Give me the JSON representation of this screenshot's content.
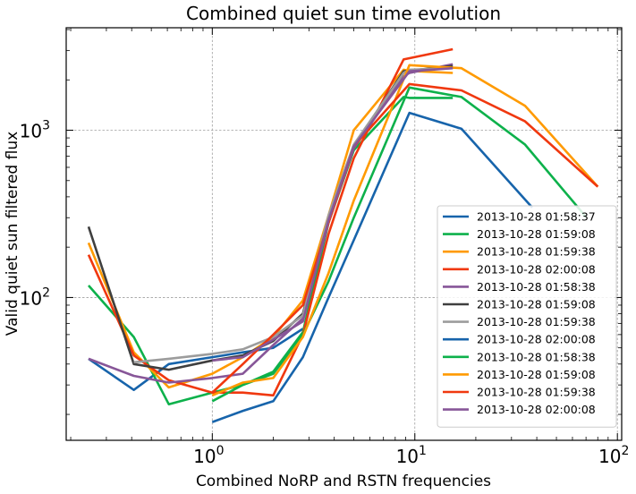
{
  "chart_data": {
    "type": "line",
    "title": "Combined quiet sun time evolution",
    "xlabel": "Combined NoRP and RSTN frequencies",
    "ylabel": "Valid quiet sun filtered flux",
    "xscale": "log",
    "yscale": "log",
    "xlim": [
      0.19,
      105
    ],
    "ylim": [
      14,
      4100
    ],
    "x_ticks": [
      {
        "value": 1,
        "base": "10",
        "exp": "0"
      },
      {
        "value": 10,
        "base": "10",
        "exp": "1"
      },
      {
        "value": 100,
        "base": "10",
        "exp": "2"
      }
    ],
    "y_ticks": [
      {
        "value": 100,
        "base": "10",
        "exp": "2"
      },
      {
        "value": 1000,
        "base": "10",
        "exp": "3"
      }
    ],
    "grid": true,
    "legend_position": "lower-right",
    "series": [
      {
        "name": "2013-10-28 01:58:37",
        "color": "#1764ab",
        "points": [
          [
            0.245,
            43
          ],
          [
            0.41,
            28
          ],
          [
            0.61,
            40
          ],
          [
            1.0,
            44
          ],
          [
            1.415,
            47
          ],
          [
            2.0,
            50
          ],
          [
            2.8,
            65
          ]
        ]
      },
      {
        "name": "2013-10-28 01:59:08",
        "color": "#0db14b",
        "points": [
          [
            0.245,
            118
          ],
          [
            0.41,
            58
          ],
          [
            0.61,
            23
          ],
          [
            1.0,
            27
          ],
          [
            1.415,
            30
          ],
          [
            2.0,
            36
          ],
          [
            2.8,
            62
          ],
          [
            3.75,
            280
          ],
          [
            4.995,
            760
          ],
          [
            8.8,
            1580
          ],
          [
            9.4,
            1560
          ],
          [
            15.4,
            1560
          ]
        ]
      },
      {
        "name": "2013-10-28 01:59:38",
        "color": "#ff9a00",
        "points": [
          [
            0.245,
            212
          ],
          [
            0.41,
            47
          ],
          [
            0.61,
            29
          ],
          [
            1.0,
            35
          ],
          [
            1.415,
            44
          ],
          [
            2.0,
            58
          ],
          [
            2.8,
            96
          ],
          [
            3.75,
            310
          ],
          [
            4.995,
            1000
          ],
          [
            8.8,
            2300
          ],
          [
            9.4,
            2260
          ],
          [
            15.4,
            2200
          ]
        ]
      },
      {
        "name": "2013-10-28 02:00:08",
        "color": "#f0380f",
        "points": [
          [
            0.245,
            180
          ],
          [
            0.41,
            45
          ],
          [
            0.61,
            32
          ],
          [
            1.0,
            27
          ],
          [
            1.415,
            27
          ],
          [
            2.0,
            26
          ],
          [
            2.8,
            60
          ],
          [
            3.75,
            240
          ],
          [
            4.995,
            680
          ],
          [
            8.8,
            2650
          ],
          [
            15.4,
            3050
          ]
        ]
      },
      {
        "name": "2013-10-28 01:58:38",
        "color": "#875698",
        "points": [
          [
            0.245,
            43
          ],
          [
            0.41,
            34
          ],
          [
            0.61,
            31
          ],
          [
            1.0,
            33
          ],
          [
            1.415,
            35
          ],
          [
            2.0,
            52
          ],
          [
            2.8,
            75
          ],
          [
            3.75,
            280
          ],
          [
            4.995,
            780
          ],
          [
            8.8,
            2100
          ],
          [
            9.4,
            2200
          ],
          [
            15.4,
            2480
          ]
        ]
      },
      {
        "name": "2013-10-28 01:59:08",
        "color": "#3f3f3f",
        "points": [
          [
            0.245,
            265
          ],
          [
            0.41,
            40
          ],
          [
            0.61,
            37
          ],
          [
            1.0,
            42
          ],
          [
            1.415,
            45
          ],
          [
            2.0,
            55
          ],
          [
            2.8,
            80
          ],
          [
            3.75,
            300
          ],
          [
            4.995,
            800
          ],
          [
            8.8,
            2250
          ],
          [
            15.4,
            2420
          ]
        ]
      },
      {
        "name": "2013-10-28 01:59:38",
        "color": "#9c9c9c",
        "points": [
          [
            0.41,
            41
          ],
          [
            0.61,
            43
          ],
          [
            1.0,
            46
          ],
          [
            1.415,
            49
          ],
          [
            2.0,
            58
          ],
          [
            2.8,
            78
          ],
          [
            3.75,
            310
          ],
          [
            4.995,
            820
          ],
          [
            8.8,
            2200
          ],
          [
            9.4,
            2300
          ],
          [
            15.4,
            2350
          ]
        ]
      },
      {
        "name": "2013-10-28 02:00:08",
        "color": "#1764ab",
        "points": [
          [
            1.0,
            18
          ],
          [
            1.415,
            21
          ],
          [
            2.0,
            24
          ],
          [
            2.8,
            44
          ],
          [
            3.75,
            100
          ],
          [
            4.995,
            220
          ],
          [
            9.4,
            1270
          ],
          [
            17.0,
            1020
          ],
          [
            35.0,
            385
          ],
          [
            38.0,
            345
          ]
        ]
      },
      {
        "name": "2013-10-28 01:58:38",
        "color": "#0db14b",
        "points": [
          [
            1.0,
            24
          ],
          [
            1.415,
            30
          ],
          [
            2.0,
            35
          ],
          [
            2.8,
            60
          ],
          [
            3.75,
            125
          ],
          [
            4.995,
            300
          ],
          [
            9.4,
            1800
          ],
          [
            17.0,
            1580
          ],
          [
            35.0,
            820
          ],
          [
            66.0,
            330
          ],
          [
            70.0,
            300
          ]
        ]
      },
      {
        "name": "2013-10-28 01:59:08",
        "color": "#ff9a00",
        "points": [
          [
            1.0,
            26
          ],
          [
            1.415,
            31
          ],
          [
            2.0,
            33
          ],
          [
            2.8,
            58
          ],
          [
            3.75,
            140
          ],
          [
            4.995,
            380
          ],
          [
            9.4,
            2450
          ],
          [
            17.0,
            2350
          ],
          [
            35.0,
            1400
          ],
          [
            80.0,
            460
          ]
        ]
      },
      {
        "name": "2013-10-28 01:59:38",
        "color": "#f0380f",
        "points": [
          [
            1.0,
            27
          ],
          [
            1.415,
            40
          ],
          [
            2.0,
            60
          ],
          [
            2.8,
            90
          ],
          [
            3.75,
            280
          ],
          [
            4.995,
            800
          ],
          [
            9.4,
            1890
          ],
          [
            17.0,
            1730
          ],
          [
            35.0,
            1130
          ],
          [
            80.0,
            460
          ]
        ]
      },
      {
        "name": "2013-10-28 02:00:08",
        "color": "#875698",
        "points": [
          [
            1.0,
            42
          ],
          [
            1.415,
            44
          ],
          [
            2.0,
            56
          ],
          [
            2.8,
            72
          ],
          [
            3.75,
            290
          ],
          [
            4.995,
            800
          ],
          [
            9.4,
            2250
          ],
          [
            15.4,
            2350
          ]
        ]
      }
    ]
  }
}
